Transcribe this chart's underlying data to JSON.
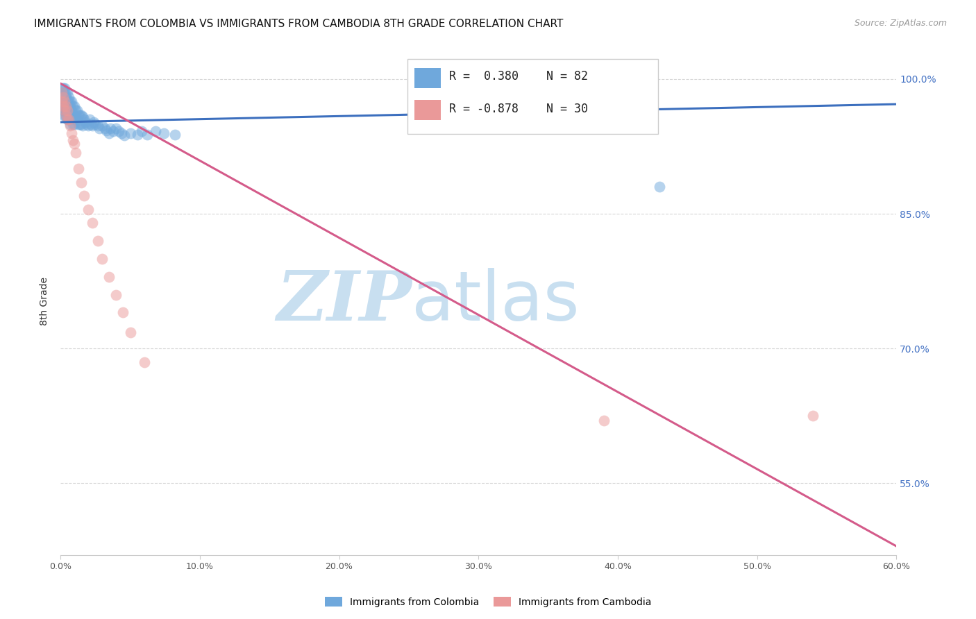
{
  "title": "IMMIGRANTS FROM COLOMBIA VS IMMIGRANTS FROM CAMBODIA 8TH GRADE CORRELATION CHART",
  "source_text": "Source: ZipAtlas.com",
  "ylabel": "8th Grade",
  "x_min": 0.0,
  "x_max": 0.6,
  "y_min": 0.47,
  "y_max": 1.035,
  "colombia_R": 0.38,
  "colombia_N": 82,
  "cambodia_R": -0.878,
  "cambodia_N": 30,
  "colombia_color": "#6fa8dc",
  "cambodia_color": "#ea9999",
  "colombia_line_color": "#3c6fbe",
  "cambodia_line_color": "#d45b8a",
  "watermark_zip": "ZIP",
  "watermark_atlas": "atlas",
  "watermark_color_zip": "#c8dff0",
  "watermark_color_atlas": "#c8dff0",
  "background_color": "#ffffff",
  "grid_color": "#cccccc",
  "title_fontsize": 11,
  "source_fontsize": 9,
  "colombia_scatter_x": [
    0.001,
    0.001,
    0.001,
    0.002,
    0.002,
    0.002,
    0.002,
    0.002,
    0.003,
    0.003,
    0.003,
    0.003,
    0.003,
    0.003,
    0.004,
    0.004,
    0.004,
    0.004,
    0.005,
    0.005,
    0.005,
    0.005,
    0.005,
    0.006,
    0.006,
    0.006,
    0.006,
    0.007,
    0.007,
    0.007,
    0.007,
    0.008,
    0.008,
    0.008,
    0.009,
    0.009,
    0.009,
    0.01,
    0.01,
    0.01,
    0.011,
    0.011,
    0.012,
    0.012,
    0.013,
    0.013,
    0.014,
    0.014,
    0.015,
    0.015,
    0.016,
    0.016,
    0.017,
    0.018,
    0.019,
    0.02,
    0.021,
    0.022,
    0.023,
    0.024,
    0.025,
    0.027,
    0.028,
    0.03,
    0.032,
    0.033,
    0.035,
    0.036,
    0.038,
    0.04,
    0.042,
    0.044,
    0.046,
    0.05,
    0.055,
    0.058,
    0.062,
    0.068,
    0.074,
    0.082,
    0.35,
    0.43
  ],
  "colombia_scatter_y": [
    0.99,
    0.985,
    0.975,
    0.99,
    0.98,
    0.97,
    0.965,
    0.96,
    0.99,
    0.985,
    0.975,
    0.97,
    0.965,
    0.96,
    0.985,
    0.98,
    0.97,
    0.96,
    0.985,
    0.975,
    0.97,
    0.965,
    0.955,
    0.98,
    0.975,
    0.965,
    0.955,
    0.975,
    0.97,
    0.96,
    0.95,
    0.975,
    0.965,
    0.955,
    0.97,
    0.96,
    0.95,
    0.97,
    0.96,
    0.95,
    0.965,
    0.955,
    0.965,
    0.955,
    0.96,
    0.95,
    0.96,
    0.95,
    0.96,
    0.95,
    0.958,
    0.948,
    0.955,
    0.952,
    0.95,
    0.948,
    0.955,
    0.95,
    0.948,
    0.952,
    0.95,
    0.948,
    0.945,
    0.948,
    0.945,
    0.943,
    0.94,
    0.945,
    0.942,
    0.945,
    0.942,
    0.94,
    0.937,
    0.94,
    0.938,
    0.942,
    0.938,
    0.942,
    0.94,
    0.938,
    0.96,
    0.88
  ],
  "cambodia_scatter_x": [
    0.001,
    0.001,
    0.002,
    0.002,
    0.003,
    0.003,
    0.004,
    0.004,
    0.005,
    0.005,
    0.006,
    0.007,
    0.008,
    0.009,
    0.01,
    0.011,
    0.013,
    0.015,
    0.017,
    0.02,
    0.023,
    0.027,
    0.03,
    0.035,
    0.04,
    0.045,
    0.05,
    0.06,
    0.39,
    0.54
  ],
  "cambodia_scatter_y": [
    0.985,
    0.975,
    0.98,
    0.97,
    0.975,
    0.965,
    0.97,
    0.96,
    0.965,
    0.955,
    0.955,
    0.948,
    0.94,
    0.932,
    0.928,
    0.918,
    0.9,
    0.885,
    0.87,
    0.855,
    0.84,
    0.82,
    0.8,
    0.78,
    0.76,
    0.74,
    0.718,
    0.685,
    0.62,
    0.625
  ],
  "colombia_trend_x": [
    0.0,
    0.6
  ],
  "colombia_trend_y": [
    0.952,
    0.972
  ],
  "cambodia_trend_x": [
    0.0,
    0.6
  ],
  "cambodia_trend_y": [
    0.995,
    0.48
  ],
  "y_tick_vals": [
    1.0,
    0.85,
    0.7,
    0.55
  ],
  "y_tick_labels": [
    "100.0%",
    "85.0%",
    "70.0%",
    "55.0%"
  ],
  "x_tick_vals": [
    0.0,
    0.1,
    0.2,
    0.3,
    0.4,
    0.5,
    0.6
  ],
  "x_tick_labels": [
    "0.0%",
    "10.0%",
    "20.0%",
    "30.0%",
    "40.0%",
    "50.0%",
    "60.0%"
  ]
}
